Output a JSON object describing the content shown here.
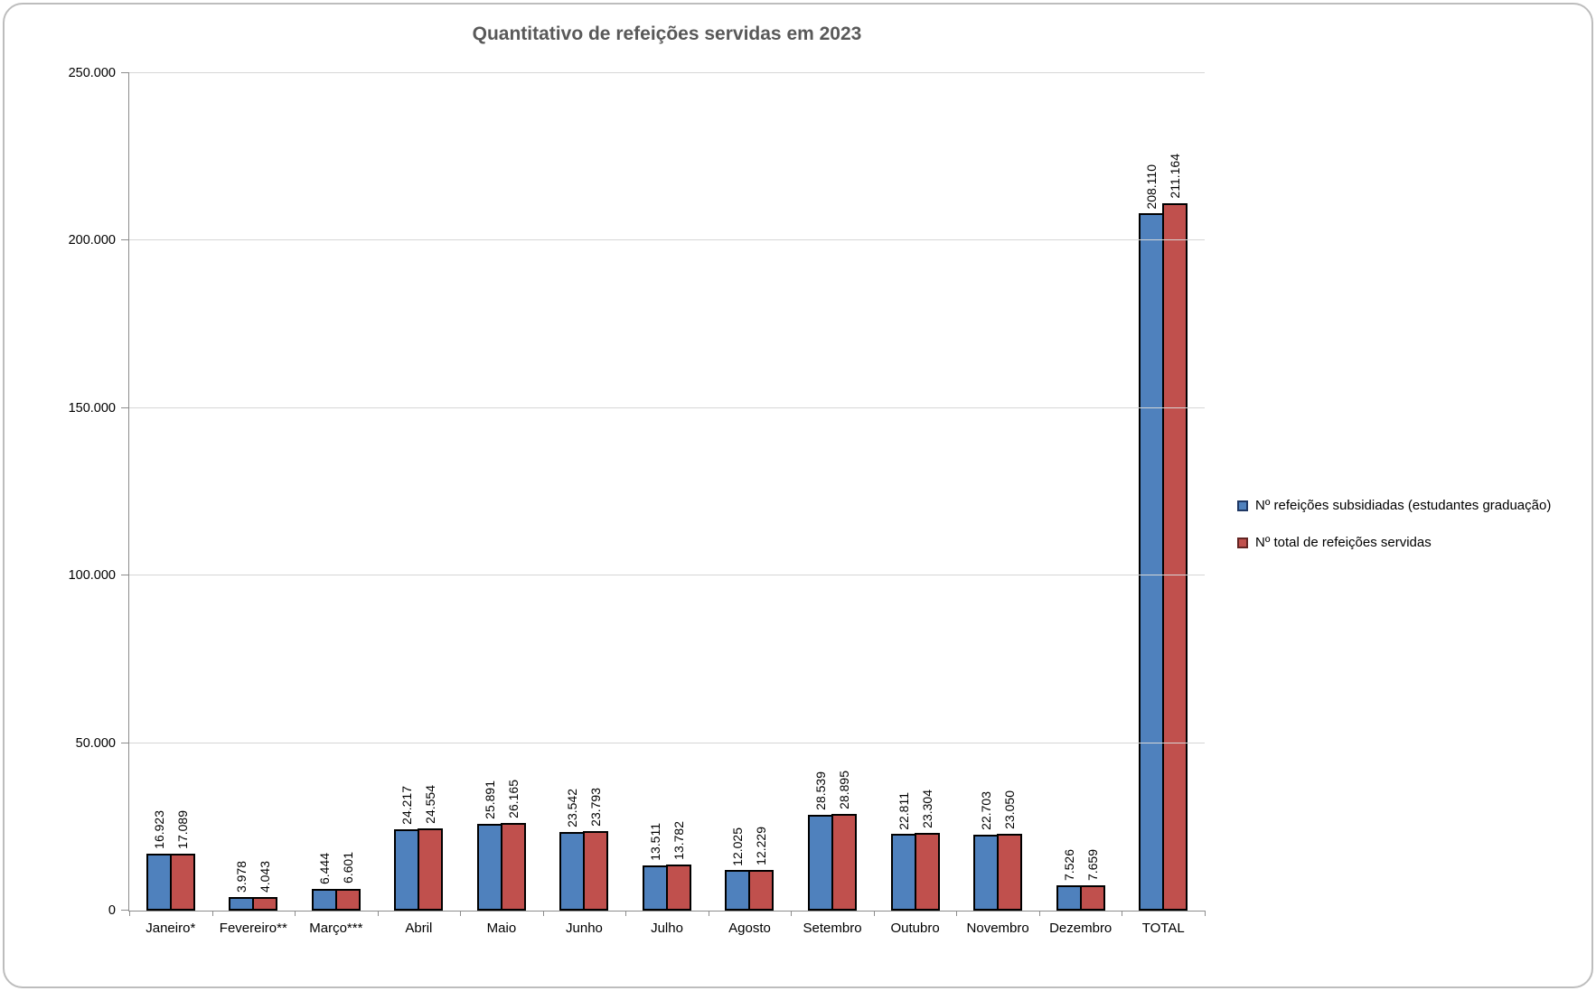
{
  "chart_data": {
    "type": "bar",
    "title": "Quantitativo de refeições servidas em 2023",
    "categories": [
      "Janeiro*",
      "Fevereiro**",
      "Março***",
      "Abril",
      "Maio",
      "Junho",
      "Julho",
      "Agosto",
      "Setembro",
      "Outubro",
      "Novembro",
      "Dezembro",
      "TOTAL"
    ],
    "series": [
      {
        "name": "Nº refeições subsidiadas (estudantes graduação)",
        "color": "#4f81bd",
        "border_color": "#000000",
        "legend_swatch_border": "#1f3864",
        "values": [
          16923,
          3978,
          6444,
          24217,
          25891,
          23542,
          13511,
          12025,
          28539,
          22811,
          22703,
          7526,
          208110
        ],
        "value_labels": [
          "16.923",
          "3.978",
          "6.444",
          "24.217",
          "25.891",
          "23.542",
          "13.511",
          "12.025",
          "28.539",
          "22.811",
          "22.703",
          "7.526",
          "208.110"
        ]
      },
      {
        "name": "Nº total de refeições servidas",
        "color": "#c0504d",
        "border_color": "#000000",
        "legend_swatch_border": "#632523",
        "values": [
          17089,
          4043,
          6601,
          24554,
          26165,
          23793,
          13782,
          12229,
          28895,
          23304,
          23050,
          7659,
          211164
        ],
        "value_labels": [
          "17.089",
          "4.043",
          "6.601",
          "24.554",
          "26.165",
          "23.793",
          "13.782",
          "12.229",
          "28.895",
          "23.304",
          "23.050",
          "7.659",
          "211.164"
        ]
      }
    ],
    "xlabel": "",
    "ylabel": "",
    "ylim": [
      0,
      250000
    ],
    "y_tick_interval": 50000,
    "y_tick_labels": [
      "0",
      "50.000",
      "100.000",
      "150.000",
      "200.000",
      "250.000"
    ],
    "grid": true,
    "legend_position": "right",
    "data_label_rotation": 90,
    "colors": {
      "title_text": "#595959",
      "axis": "#8c8c8c",
      "gridline": "#d6d6d6",
      "frame_border": "#bdbdbd",
      "label_text": "#000000"
    }
  }
}
